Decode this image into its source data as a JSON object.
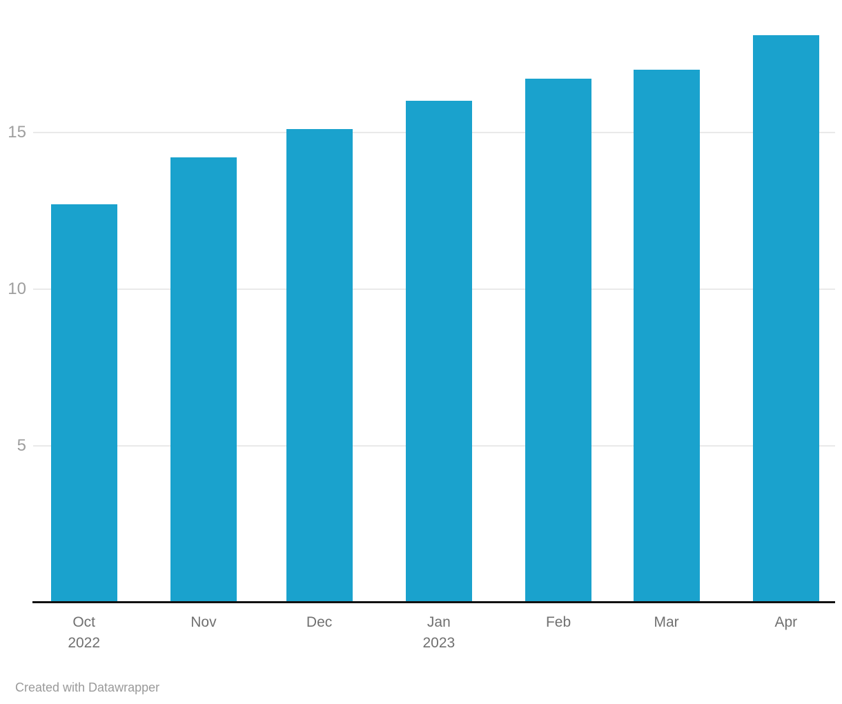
{
  "chart_data": {
    "type": "bar",
    "title": "",
    "xlabel": "",
    "ylabel": "",
    "categories": [
      {
        "label": "Oct",
        "sublabel": "2022"
      },
      {
        "label": "Nov",
        "sublabel": ""
      },
      {
        "label": "Dec",
        "sublabel": ""
      },
      {
        "label": "Jan",
        "sublabel": "2023"
      },
      {
        "label": "Feb",
        "sublabel": ""
      },
      {
        "label": "Mar",
        "sublabel": ""
      },
      {
        "label": "Apr",
        "sublabel": ""
      }
    ],
    "values": [
      12.7,
      14.2,
      15.1,
      16.0,
      16.7,
      17.0,
      18.1
    ],
    "y_ticks": [
      5,
      10,
      15
    ],
    "ylim": [
      0,
      18.75
    ],
    "x_day_offsets": [
      0,
      31,
      61,
      92,
      123,
      151,
      182
    ],
    "grid": true,
    "legend": "none",
    "bar_color": "#1aa2cd",
    "gridline_color": "#e9e9e9",
    "axis_line_color": "#111111",
    "y_label_color": "#9e9e9e",
    "x_label_color": "#707070"
  },
  "footer": {
    "attribution": "Created with Datawrapper",
    "color": "#9a9a9a"
  }
}
